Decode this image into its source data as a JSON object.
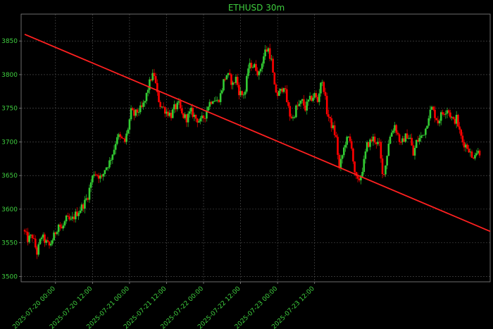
{
  "chart_data": {
    "type": "candlestick",
    "title": "ETHUSD 30m",
    "ylim": [
      3492,
      3890
    ],
    "y_ticks": [
      3500,
      3550,
      3600,
      3650,
      3700,
      3750,
      3800,
      3850
    ],
    "x_tick_labels": [
      "2025-07-20 00:00",
      "2025-07-20 12:00",
      "2025-07-21 00:00",
      "2025-07-21 12:00",
      "2025-07-22 00:00",
      "2025-07-22 12:00",
      "2025-07-23 00:00",
      "2025-07-23 12:00"
    ],
    "grid": true,
    "colors": {
      "up": "#33cc33",
      "down": "#ff0000",
      "trendline": "#ff2020",
      "text": "#3fcf3f"
    },
    "trendline": {
      "start": 3860,
      "end": 3567
    },
    "close_path": [
      [
        0,
        3565
      ],
      [
        2,
        3555
      ],
      [
        5,
        3560
      ],
      [
        8,
        3535
      ],
      [
        11,
        3560
      ],
      [
        14,
        3550
      ],
      [
        16,
        3545
      ],
      [
        19,
        3560
      ],
      [
        22,
        3578
      ],
      [
        24,
        3570
      ],
      [
        27,
        3585
      ],
      [
        30,
        3582
      ],
      [
        33,
        3592
      ],
      [
        36,
        3600
      ],
      [
        39,
        3610
      ],
      [
        41,
        3620
      ],
      [
        43,
        3640
      ],
      [
        45,
        3655
      ],
      [
        48,
        3650
      ],
      [
        50,
        3645
      ],
      [
        52,
        3660
      ],
      [
        55,
        3670
      ],
      [
        58,
        3690
      ],
      [
        60,
        3710
      ],
      [
        62,
        3705
      ],
      [
        65,
        3700
      ],
      [
        67,
        3720
      ],
      [
        69,
        3745
      ],
      [
        71,
        3740
      ],
      [
        73,
        3745
      ],
      [
        76,
        3750
      ],
      [
        78,
        3760
      ],
      [
        80,
        3780
      ],
      [
        82,
        3795
      ],
      [
        84,
        3800
      ],
      [
        86,
        3770
      ],
      [
        88,
        3755
      ],
      [
        90,
        3750
      ],
      [
        92,
        3745
      ],
      [
        95,
        3740
      ],
      [
        97,
        3750
      ],
      [
        100,
        3755
      ],
      [
        102,
        3740
      ],
      [
        105,
        3735
      ],
      [
        108,
        3745
      ],
      [
        111,
        3735
      ],
      [
        114,
        3730
      ],
      [
        117,
        3740
      ],
      [
        119,
        3755
      ],
      [
        122,
        3765
      ],
      [
        125,
        3760
      ],
      [
        127,
        3770
      ],
      [
        129,
        3790
      ],
      [
        131,
        3800
      ],
      [
        133,
        3795
      ],
      [
        135,
        3785
      ],
      [
        137,
        3795
      ],
      [
        139,
        3775
      ],
      [
        141,
        3770
      ],
      [
        143,
        3775
      ],
      [
        145,
        3810
      ],
      [
        147,
        3815
      ],
      [
        150,
        3810
      ],
      [
        152,
        3800
      ],
      [
        154,
        3820
      ],
      [
        156,
        3835
      ],
      [
        158,
        3838
      ],
      [
        160,
        3820
      ],
      [
        162,
        3780
      ],
      [
        164,
        3770
      ],
      [
        166,
        3775
      ],
      [
        168,
        3785
      ],
      [
        170,
        3760
      ],
      [
        172,
        3740
      ],
      [
        174,
        3735
      ],
      [
        176,
        3750
      ],
      [
        178,
        3755
      ],
      [
        180,
        3760
      ],
      [
        182,
        3750
      ],
      [
        184,
        3760
      ],
      [
        186,
        3765
      ],
      [
        188,
        3770
      ],
      [
        190,
        3760
      ],
      [
        192,
        3790
      ],
      [
        194,
        3780
      ],
      [
        196,
        3745
      ],
      [
        198,
        3730
      ],
      [
        200,
        3720
      ],
      [
        202,
        3705
      ],
      [
        204,
        3660
      ],
      [
        206,
        3680
      ],
      [
        208,
        3700
      ],
      [
        210,
        3705
      ],
      [
        212,
        3695
      ],
      [
        214,
        3650
      ],
      [
        216,
        3640
      ],
      [
        218,
        3650
      ],
      [
        220,
        3670
      ],
      [
        222,
        3695
      ],
      [
        224,
        3700
      ],
      [
        226,
        3705
      ],
      [
        228,
        3700
      ],
      [
        230,
        3695
      ],
      [
        232,
        3650
      ],
      [
        234,
        3665
      ],
      [
        236,
        3700
      ],
      [
        238,
        3715
      ],
      [
        240,
        3725
      ],
      [
        242,
        3710
      ],
      [
        244,
        3695
      ],
      [
        246,
        3705
      ],
      [
        248,
        3710
      ],
      [
        250,
        3705
      ],
      [
        252,
        3680
      ],
      [
        254,
        3700
      ],
      [
        256,
        3705
      ],
      [
        258,
        3710
      ],
      [
        260,
        3720
      ],
      [
        262,
        3740
      ],
      [
        264,
        3750
      ],
      [
        266,
        3740
      ],
      [
        268,
        3730
      ],
      [
        270,
        3740
      ],
      [
        272,
        3745
      ],
      [
        274,
        3750
      ],
      [
        276,
        3740
      ],
      [
        278,
        3730
      ],
      [
        280,
        3735
      ],
      [
        282,
        3715
      ],
      [
        284,
        3700
      ],
      [
        286,
        3695
      ],
      [
        288,
        3690
      ],
      [
        290,
        3675
      ],
      [
        292,
        3685
      ]
    ]
  }
}
